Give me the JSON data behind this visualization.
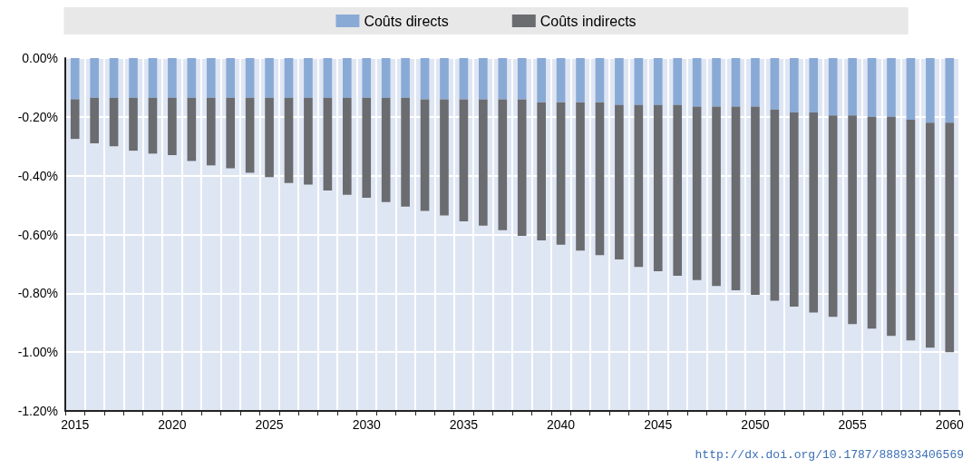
{
  "chart_data": {
    "type": "bar",
    "stacked": true,
    "categories": [
      "2015",
      null,
      null,
      null,
      null,
      "2020",
      null,
      null,
      null,
      null,
      "2025",
      null,
      null,
      null,
      null,
      "2030",
      null,
      null,
      null,
      null,
      "2035",
      null,
      null,
      null,
      null,
      "2040",
      null,
      null,
      null,
      null,
      "2045",
      null,
      null,
      null,
      null,
      "2050",
      null,
      null,
      null,
      null,
      "2055",
      null,
      null,
      null,
      null,
      "2060"
    ],
    "series": [
      {
        "name": "Coûts directs",
        "color": "#8aaad6",
        "values": [
          -0.14,
          -0.135,
          -0.135,
          -0.135,
          -0.135,
          -0.135,
          -0.135,
          -0.135,
          -0.135,
          -0.135,
          -0.135,
          -0.135,
          -0.135,
          -0.135,
          -0.135,
          -0.135,
          -0.135,
          -0.135,
          -0.14,
          -0.14,
          -0.14,
          -0.14,
          -0.14,
          -0.14,
          -0.15,
          -0.15,
          -0.15,
          -0.15,
          -0.16,
          -0.16,
          -0.16,
          -0.16,
          -0.165,
          -0.165,
          -0.165,
          -0.165,
          -0.175,
          -0.185,
          -0.185,
          -0.195,
          -0.195,
          -0.2,
          -0.2,
          -0.21,
          -0.22,
          -0.22
        ]
      },
      {
        "name": "Coûts indirects",
        "color": "#6b6c70",
        "values": [
          -0.135,
          -0.155,
          -0.165,
          -0.18,
          -0.19,
          -0.195,
          -0.215,
          -0.23,
          -0.24,
          -0.255,
          -0.27,
          -0.29,
          -0.295,
          -0.315,
          -0.33,
          -0.34,
          -0.355,
          -0.37,
          -0.38,
          -0.395,
          -0.415,
          -0.43,
          -0.445,
          -0.465,
          -0.47,
          -0.485,
          -0.505,
          -0.52,
          -0.525,
          -0.55,
          -0.565,
          -0.58,
          -0.59,
          -0.61,
          -0.625,
          -0.64,
          -0.65,
          -0.66,
          -0.68,
          -0.685,
          -0.71,
          -0.72,
          -0.745,
          -0.75,
          -0.765,
          -0.78
        ]
      }
    ],
    "ylim": [
      -1.2,
      0
    ],
    "yticks": [
      {
        "value": 0,
        "label": "0.00%"
      },
      {
        "value": -0.2,
        "label": "-0.20%"
      },
      {
        "value": -0.4,
        "label": "-0.40%"
      },
      {
        "value": -0.6,
        "label": "-0.60%"
      },
      {
        "value": -0.8,
        "label": "-0.80%"
      },
      {
        "value": -1.0,
        "label": "-1.00%"
      },
      {
        "value": -1.2,
        "label": "-1.20%"
      }
    ],
    "grid": true,
    "legend": "top",
    "annotations": [
      "http://dx.doi.org/10.1787/888933406569"
    ]
  }
}
